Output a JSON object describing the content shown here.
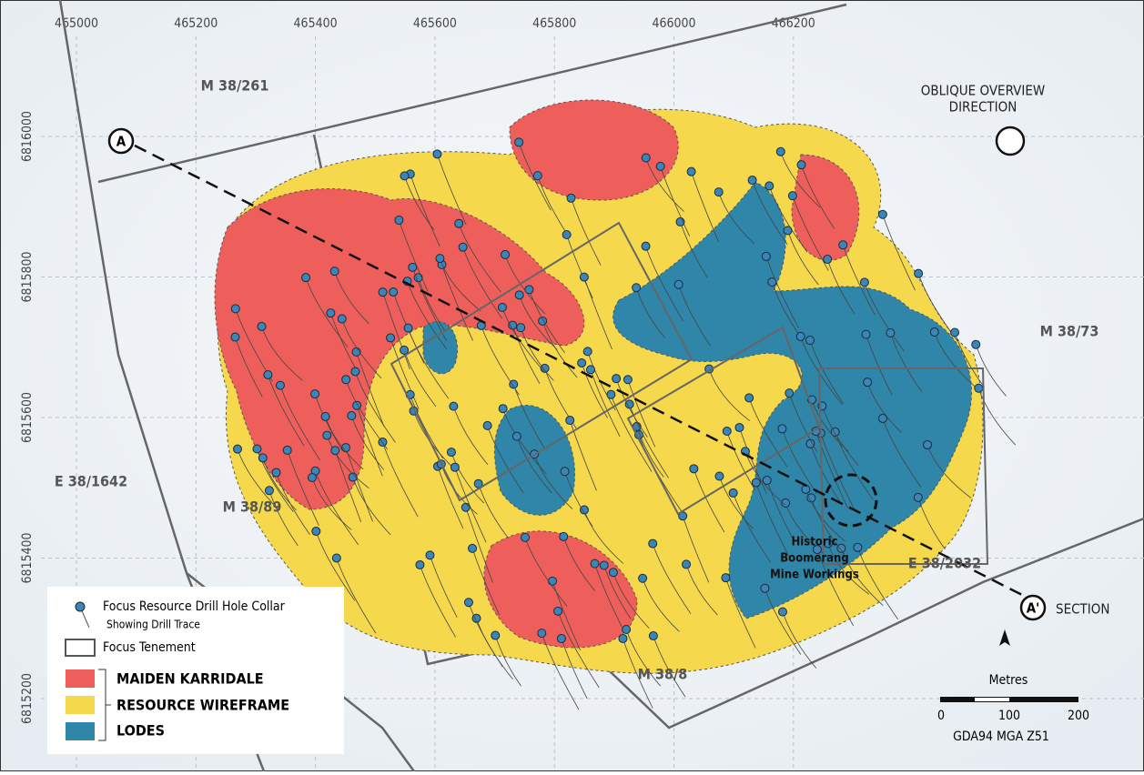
{
  "grid": {
    "x_labels": [
      "465000",
      "465200",
      "465400",
      "465600",
      "465800",
      "466000",
      "466200"
    ],
    "y_labels": [
      "6816000",
      "6815800",
      "6815600",
      "6815400",
      "6815200"
    ]
  },
  "tenements": [
    "M 38/261",
    "M 38/73",
    "E 38/1642",
    "M 38/89",
    "M 38/8",
    "E 38/2032"
  ],
  "overview": {
    "line1": "OBLIQUE OVERVIEW",
    "line2": "DIRECTION"
  },
  "section": {
    "start": "A",
    "end": "A'",
    "label": "SECTION"
  },
  "annotation": {
    "line1": "Historic",
    "line2": "Boomerang",
    "line3": "Mine Workings"
  },
  "legend": {
    "collar": "Focus Resource Drill Hole Collar",
    "trace": "Showing Drill Trace",
    "tenement": "Focus Tenement",
    "red": "MAIDEN KARRIDALE",
    "yellow": "RESOURCE WIREFRAME",
    "blue": "LODES"
  },
  "scale": {
    "title": "Metres",
    "ticks": [
      "0",
      "100",
      "200"
    ],
    "datum": "GDA94 MGA Z51"
  }
}
